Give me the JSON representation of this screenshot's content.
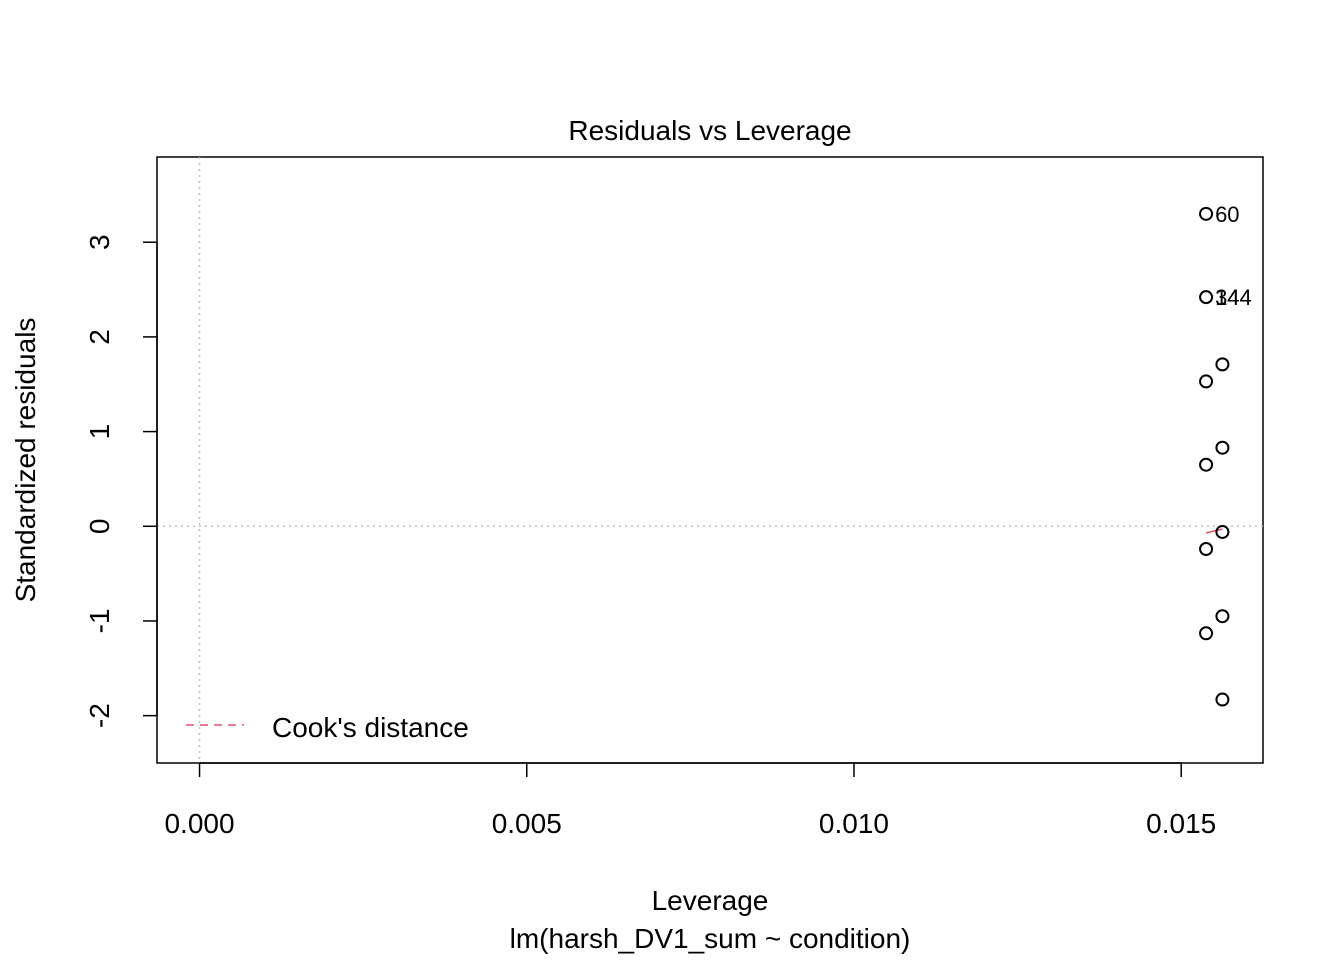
{
  "chart_data": {
    "type": "scatter",
    "title": "Residuals vs Leverage",
    "xlabel": "Leverage",
    "subtitle": "lm(harsh_DV1_sum ~ condition)",
    "ylabel": "Standardized residuals",
    "xlim": [
      -0.00065,
      0.01625
    ],
    "ylim": [
      -2.5,
      3.9
    ],
    "x_ticks": [
      {
        "value": 0.0,
        "label": "0.000"
      },
      {
        "value": 0.005,
        "label": "0.005"
      },
      {
        "value": 0.01,
        "label": "0.010"
      },
      {
        "value": 0.015,
        "label": "0.015"
      }
    ],
    "y_ticks": [
      {
        "value": -2,
        "label": "-2"
      },
      {
        "value": -1,
        "label": "-1"
      },
      {
        "value": 0,
        "label": "0"
      },
      {
        "value": 1,
        "label": "1"
      },
      {
        "value": 2,
        "label": "2"
      },
      {
        "value": 3,
        "label": "3"
      }
    ],
    "reference_lines": {
      "x": 0,
      "y": 0,
      "style": "dotted",
      "color": "#bebebe"
    },
    "points": [
      {
        "x": 0.01538,
        "y": 3.3
      },
      {
        "x": 0.01538,
        "y": 2.42
      },
      {
        "x": 0.01538,
        "y": 1.53
      },
      {
        "x": 0.01538,
        "y": 0.65
      },
      {
        "x": 0.01538,
        "y": -0.24
      },
      {
        "x": 0.01538,
        "y": -1.13
      },
      {
        "x": 0.01563,
        "y": 1.71
      },
      {
        "x": 0.01563,
        "y": 0.83
      },
      {
        "x": 0.01563,
        "y": -0.06
      },
      {
        "x": 0.01563,
        "y": -0.95
      },
      {
        "x": 0.01563,
        "y": -1.83
      }
    ],
    "point_labels": [
      {
        "x": 0.01538,
        "y": 3.3,
        "text": "60"
      },
      {
        "x": 0.01538,
        "y": 2.42,
        "text": "34"
      },
      {
        "x": 0.01538,
        "y": 2.42,
        "text": "144"
      }
    ],
    "smooth_line": {
      "color": "#DF536B",
      "points": [
        [
          0.01538,
          -0.07
        ],
        [
          0.01563,
          -0.03
        ]
      ]
    },
    "legend": {
      "position": "bottom-left",
      "entries": [
        {
          "label": "Cook's distance",
          "color": "#DF536B",
          "style": "dashed"
        }
      ]
    },
    "colors": {
      "points": "#000000",
      "cooks": "#DF536B",
      "reference": "#bebebe"
    }
  }
}
